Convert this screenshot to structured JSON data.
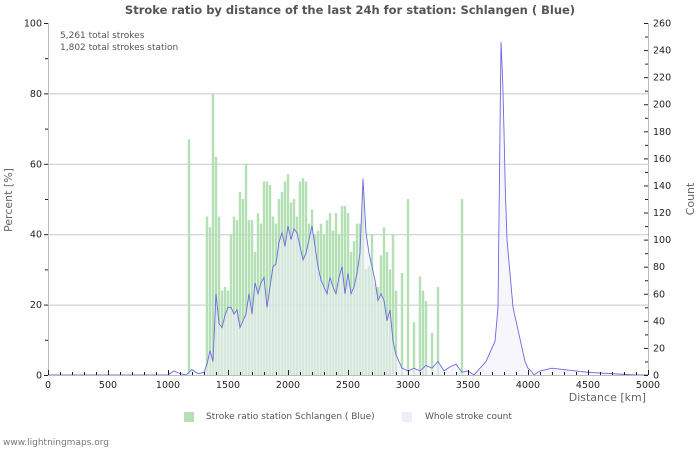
{
  "chart_data": {
    "type": "bar+area",
    "title": "Stroke ratio by distance of the last 24h for station: Schlangen ( Blue)",
    "xlabel": "Distance   [km]",
    "ylabel_left": "Percent   [%]",
    "ylabel_right": "Count",
    "xlim": [
      0,
      5000
    ],
    "ylim_left": [
      0,
      100
    ],
    "ylim_right": [
      0,
      260
    ],
    "x_ticks": [
      "0",
      "500",
      "1000",
      "1500",
      "2000",
      "2500",
      "3000",
      "3500",
      "4000",
      "4500",
      "5000"
    ],
    "y_ticks_left": [
      "0",
      "20",
      "40",
      "60",
      "80",
      "100"
    ],
    "y_ticks_right": [
      "0",
      "20",
      "40",
      "60",
      "80",
      "100",
      "120",
      "140",
      "160",
      "180",
      "200",
      "220",
      "240",
      "260"
    ],
    "grid": "horizontal at left-axis 20% steps",
    "legend_position": "bottom",
    "bin_width_km": 25,
    "series": [
      {
        "name": "Stroke ratio station Schlangen ( Blue)",
        "axis": "left",
        "kind": "bar",
        "color": "#b5e0b5",
        "x": [
          1175,
          1325,
          1350,
          1375,
          1400,
          1425,
          1450,
          1475,
          1500,
          1525,
          1550,
          1575,
          1600,
          1625,
          1650,
          1675,
          1700,
          1725,
          1750,
          1775,
          1800,
          1825,
          1850,
          1875,
          1900,
          1925,
          1950,
          1975,
          2000,
          2025,
          2050,
          2075,
          2100,
          2125,
          2150,
          2175,
          2200,
          2225,
          2250,
          2275,
          2300,
          2325,
          2350,
          2375,
          2400,
          2425,
          2450,
          2475,
          2500,
          2525,
          2550,
          2575,
          2600,
          2625,
          2650,
          2675,
          2700,
          2725,
          2750,
          2775,
          2800,
          2825,
          2850,
          2875,
          2900,
          2950,
          3000,
          3050,
          3100,
          3125,
          3150,
          3200,
          3250,
          3450
        ],
        "values": [
          67,
          45,
          42,
          80,
          62,
          45,
          24,
          25,
          24,
          40,
          45,
          44,
          52,
          50,
          60,
          44,
          44,
          35,
          46,
          43,
          55,
          55,
          54,
          45,
          43,
          50,
          52,
          55,
          57,
          49,
          50,
          45,
          55,
          56,
          55,
          43,
          47,
          40,
          41,
          43,
          40,
          44,
          46,
          41,
          46,
          40,
          48,
          48,
          46,
          35,
          38,
          43,
          43,
          52,
          30,
          31,
          40,
          26,
          25,
          34,
          42,
          35,
          30,
          40,
          24,
          29,
          50,
          15,
          28,
          24,
          21,
          12,
          25,
          50
        ]
      },
      {
        "name": "Whole stroke count",
        "axis": "right",
        "kind": "area",
        "fill": "#eeeefa",
        "stroke": "#6a6ae0",
        "x": [
          0,
          1000,
          1050,
          1100,
          1150,
          1200,
          1250,
          1300,
          1325,
          1350,
          1375,
          1400,
          1425,
          1450,
          1475,
          1500,
          1525,
          1550,
          1575,
          1600,
          1625,
          1650,
          1675,
          1700,
          1725,
          1750,
          1775,
          1800,
          1825,
          1850,
          1875,
          1900,
          1925,
          1950,
          1975,
          2000,
          2025,
          2050,
          2075,
          2100,
          2125,
          2150,
          2175,
          2200,
          2225,
          2250,
          2275,
          2300,
          2325,
          2350,
          2375,
          2400,
          2425,
          2450,
          2475,
          2500,
          2525,
          2550,
          2575,
          2600,
          2625,
          2650,
          2675,
          2700,
          2725,
          2750,
          2775,
          2800,
          2825,
          2850,
          2875,
          2900,
          2925,
          2950,
          3000,
          3050,
          3100,
          3150,
          3200,
          3250,
          3300,
          3350,
          3400,
          3450,
          3500,
          3550,
          3600,
          3650,
          3700,
          3725,
          3750,
          3775,
          3790,
          3800,
          3810,
          3825,
          3850,
          3875,
          3900,
          3925,
          3950,
          3975,
          4000,
          4025,
          4050,
          4100,
          4200,
          4500,
          4900,
          5000
        ],
        "values": [
          0,
          0,
          3,
          1,
          0,
          4,
          1,
          2,
          8,
          18,
          10,
          60,
          38,
          35,
          44,
          50,
          50,
          45,
          48,
          35,
          40,
          45,
          60,
          45,
          68,
          60,
          68,
          72,
          50,
          65,
          80,
          82,
          98,
          105,
          95,
          110,
          100,
          108,
          105,
          95,
          85,
          90,
          100,
          110,
          95,
          80,
          70,
          65,
          60,
          72,
          65,
          60,
          72,
          80,
          60,
          75,
          60,
          65,
          75,
          90,
          145,
          105,
          90,
          80,
          70,
          55,
          60,
          55,
          40,
          48,
          25,
          15,
          10,
          5,
          3,
          5,
          3,
          7,
          5,
          10,
          3,
          6,
          8,
          2,
          3,
          0,
          5,
          10,
          20,
          25,
          50,
          246,
          215,
          180,
          140,
          100,
          75,
          50,
          40,
          30,
          20,
          10,
          5,
          3,
          0,
          3,
          5,
          2,
          0,
          0
        ]
      }
    ]
  },
  "header": {
    "title": "Stroke ratio by distance of the last 24h for station: Schlangen ( Blue)"
  },
  "info": {
    "total_strokes": "5,261 total strokes",
    "total_strokes_station": "1,802 total strokes station"
  },
  "legend": {
    "items": [
      {
        "label": "Stroke ratio station Schlangen ( Blue)",
        "color": "#b5e0b5"
      },
      {
        "label": "Whole stroke count",
        "color": "#eeeefa"
      }
    ]
  },
  "footer": {
    "source": "www.lightningmaps.org"
  }
}
